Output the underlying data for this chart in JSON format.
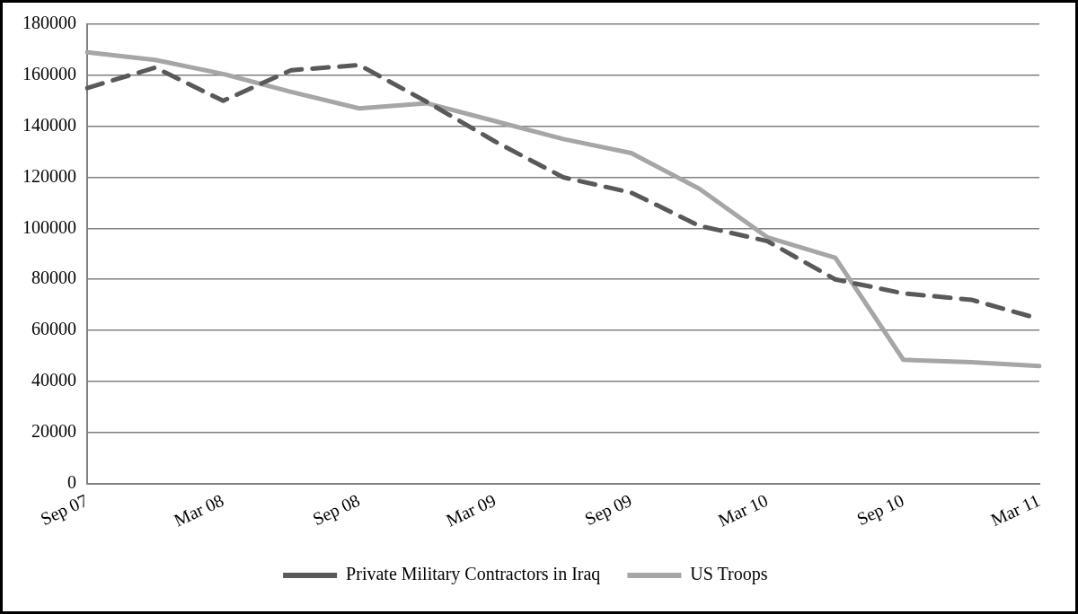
{
  "chart_data": {
    "type": "line",
    "categories": [
      "Sep 07",
      null,
      "Mar 08",
      null,
      "Sep 08",
      null,
      "Mar 09",
      null,
      "Sep 09",
      null,
      "Mar 10",
      null,
      "Sep 10",
      null,
      "Mar 11"
    ],
    "series": [
      {
        "name": "Private Military Contractors in Iraq",
        "color": "#595959",
        "line_style": "dashed",
        "values": [
          155000,
          163000,
          150000,
          162000,
          164000,
          149500,
          134000,
          120000,
          114000,
          101000,
          95000,
          80000,
          74500,
          72000,
          64500
        ]
      },
      {
        "name": "US Troops",
        "color": "#a6a6a6",
        "line_style": "solid",
        "values": [
          169000,
          166000,
          160500,
          153500,
          147000,
          149000,
          142000,
          135000,
          129500,
          115500,
          96500,
          88500,
          48500,
          47500,
          46000
        ]
      }
    ],
    "ylim": [
      0,
      180000
    ],
    "yticks": [
      0,
      20000,
      40000,
      60000,
      80000,
      100000,
      120000,
      140000,
      160000,
      180000
    ],
    "grid": "y",
    "legend": "bottom",
    "marker": "none"
  }
}
